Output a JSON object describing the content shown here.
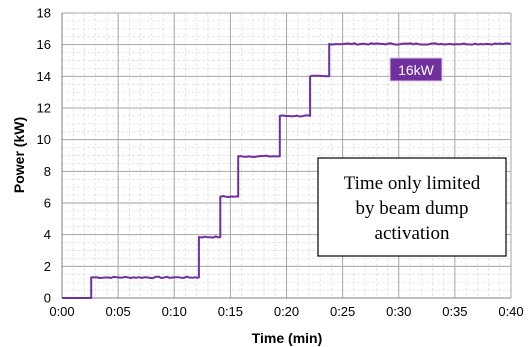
{
  "chart_data": {
    "type": "line",
    "title": "",
    "xlabel": "Time (min)",
    "ylabel": "Power (kW)",
    "xlim": [
      0,
      40
    ],
    "ylim": [
      0,
      18
    ],
    "x_ticks": [
      0,
      5,
      10,
      15,
      20,
      25,
      30,
      35,
      40
    ],
    "x_tick_labels": [
      "0:00",
      "0:05",
      "0:10",
      "0:15",
      "0:20",
      "0:25",
      "0:30",
      "0:35",
      "0:40"
    ],
    "y_ticks": [
      0,
      2,
      4,
      6,
      8,
      10,
      12,
      14,
      16,
      18
    ],
    "y_tick_labels": [
      "0",
      "2",
      "4",
      "6",
      "8",
      "10",
      "12",
      "14",
      "16",
      "18"
    ],
    "grid": true,
    "series": [
      {
        "color": "#7030a0",
        "points": [
          [
            0,
            0
          ],
          [
            2.6,
            0
          ],
          [
            2.6,
            1.3
          ],
          [
            12.2,
            1.3
          ],
          [
            12.2,
            3.85
          ],
          [
            14.1,
            3.85
          ],
          [
            14.1,
            6.4
          ],
          [
            15.7,
            6.4
          ],
          [
            15.7,
            8.95
          ],
          [
            19.4,
            8.95
          ],
          [
            19.4,
            11.5
          ],
          [
            22.1,
            11.5
          ],
          [
            22.1,
            14.0
          ],
          [
            23.8,
            14.0
          ],
          [
            23.8,
            16.05
          ],
          [
            40,
            16.05
          ]
        ]
      }
    ],
    "annotations": [
      {
        "text": "16kW",
        "at": [
          32,
          14.6
        ],
        "color": "#7030a0"
      },
      {
        "lines": [
          "Time only limited",
          "by beam dump",
          "activation"
        ]
      }
    ]
  }
}
